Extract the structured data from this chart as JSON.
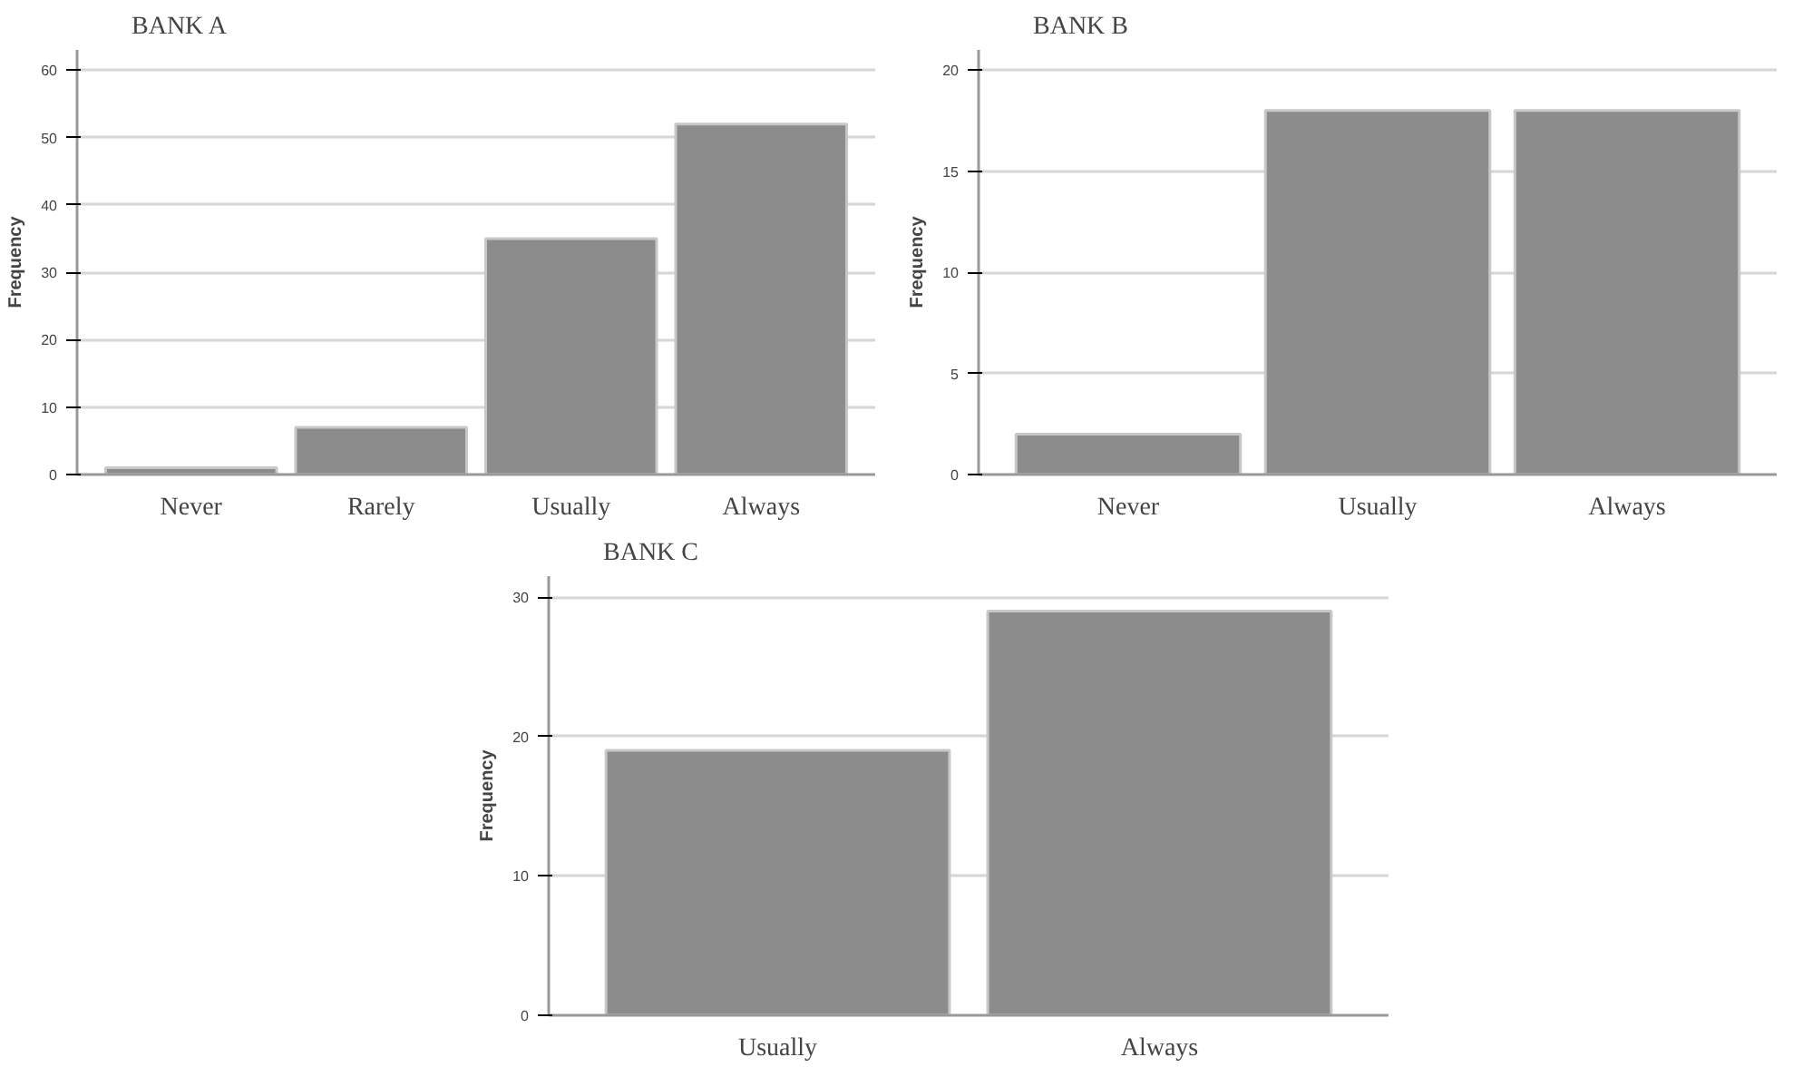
{
  "chart_data": [
    {
      "type": "bar",
      "title": "BANK A",
      "ylabel": "Frequency",
      "categories": [
        "Never",
        "Rarely",
        "Usually",
        "Always"
      ],
      "values": [
        1,
        7,
        35,
        52
      ],
      "color": "#8c8c8c",
      "ylim": [
        0,
        63
      ],
      "yticks": [
        0,
        10,
        20,
        30,
        40,
        50,
        60
      ],
      "grid": "y"
    },
    {
      "type": "bar",
      "title": "BANK B",
      "ylabel": "Frequency",
      "categories": [
        "Never",
        "Usually",
        "Always"
      ],
      "values": [
        2,
        18,
        18
      ],
      "color": "#8c8c8c",
      "ylim": [
        0,
        21
      ],
      "yticks": [
        0,
        5,
        10,
        15,
        20
      ],
      "grid": "y"
    },
    {
      "type": "bar",
      "title": "BANK C",
      "ylabel": "Frequency",
      "categories": [
        "Usually",
        "Always"
      ],
      "values": [
        19,
        29
      ],
      "color": "#8c8c8c",
      "ylim": [
        0,
        31.5
      ],
      "yticks": [
        0,
        10,
        20,
        30
      ],
      "grid": "y"
    }
  ]
}
